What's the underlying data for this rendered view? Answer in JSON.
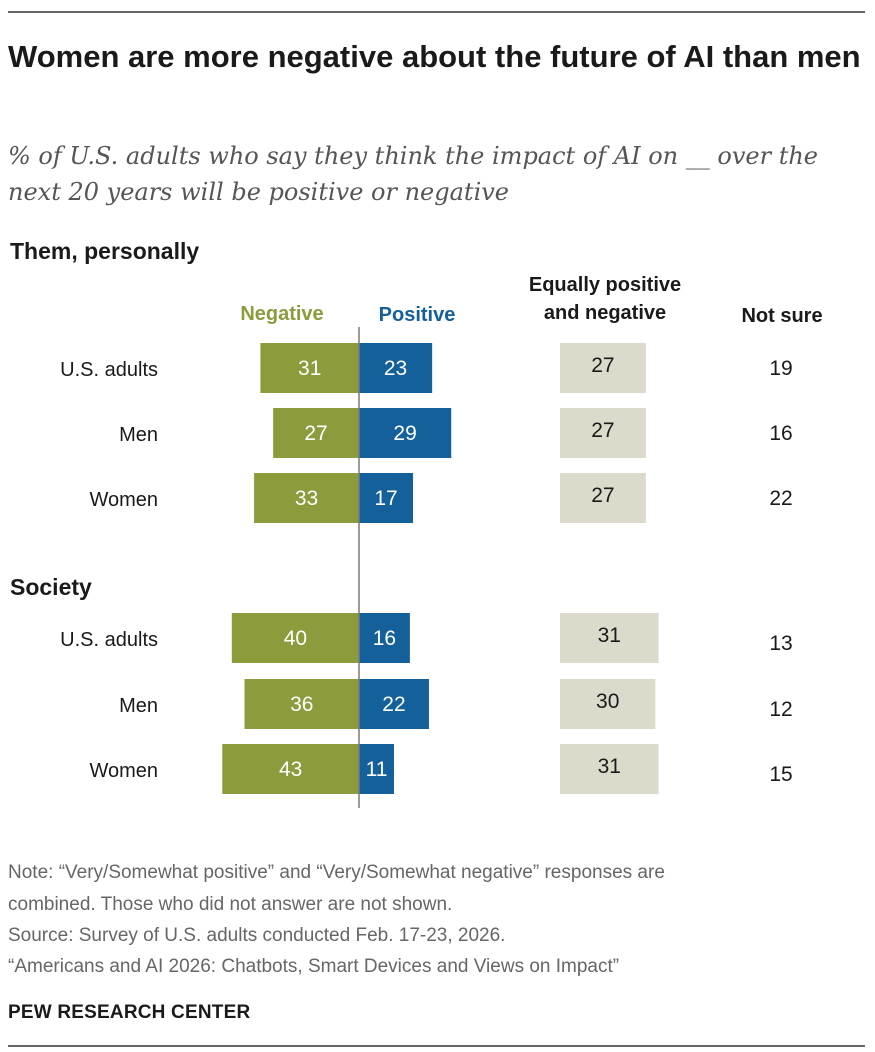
{
  "title": "Women are more negative about the future of AI than men",
  "subtitle": "% of U.S. adults who say they think the impact of AI on __ over the next 20 years will be positive or negative",
  "columns": {
    "negative": "Negative",
    "positive": "Positive",
    "equally": "Equally positive and negative",
    "not_sure": "Not sure"
  },
  "colors": {
    "negative": "#8c9b3c",
    "positive": "#13609a",
    "equally": "#dcdacb",
    "divider": "#7a7a7a"
  },
  "notes": {
    "note_line1": "Note: “Very/Somewhat positive” and “Very/Somewhat negative” responses are",
    "note_line2": "combined. Those who did not answer are not shown.",
    "source": "Source: Survey of U.S. adults conducted Feb. 17-23, 2026.",
    "report": "“Americans and AI 2026: Chatbots, Smart Devices and Views on Impact”"
  },
  "footer": "PEW RESEARCH CENTER",
  "chart_data": {
    "type": "bar",
    "title": "Women are more negative about the future of AI than men",
    "series_names": [
      "Negative",
      "Positive",
      "Equally positive and negative",
      "Not sure"
    ],
    "sections": [
      {
        "name": "Them, personally",
        "rows": [
          {
            "label": "U.S. adults",
            "negative": 31,
            "positive": 23,
            "equally": 27,
            "not_sure": 19
          },
          {
            "label": "Men",
            "negative": 27,
            "positive": 29,
            "equally": 27,
            "not_sure": 16
          },
          {
            "label": "Women",
            "negative": 33,
            "positive": 17,
            "equally": 27,
            "not_sure": 22
          }
        ]
      },
      {
        "name": "Society",
        "rows": [
          {
            "label": "U.S. adults",
            "negative": 40,
            "positive": 16,
            "equally": 31,
            "not_sure": 13
          },
          {
            "label": "Men",
            "negative": 36,
            "positive": 22,
            "equally": 30,
            "not_sure": 12
          },
          {
            "label": "Women",
            "negative": 43,
            "positive": 11,
            "equally": 31,
            "not_sure": 15
          }
        ]
      }
    ]
  }
}
